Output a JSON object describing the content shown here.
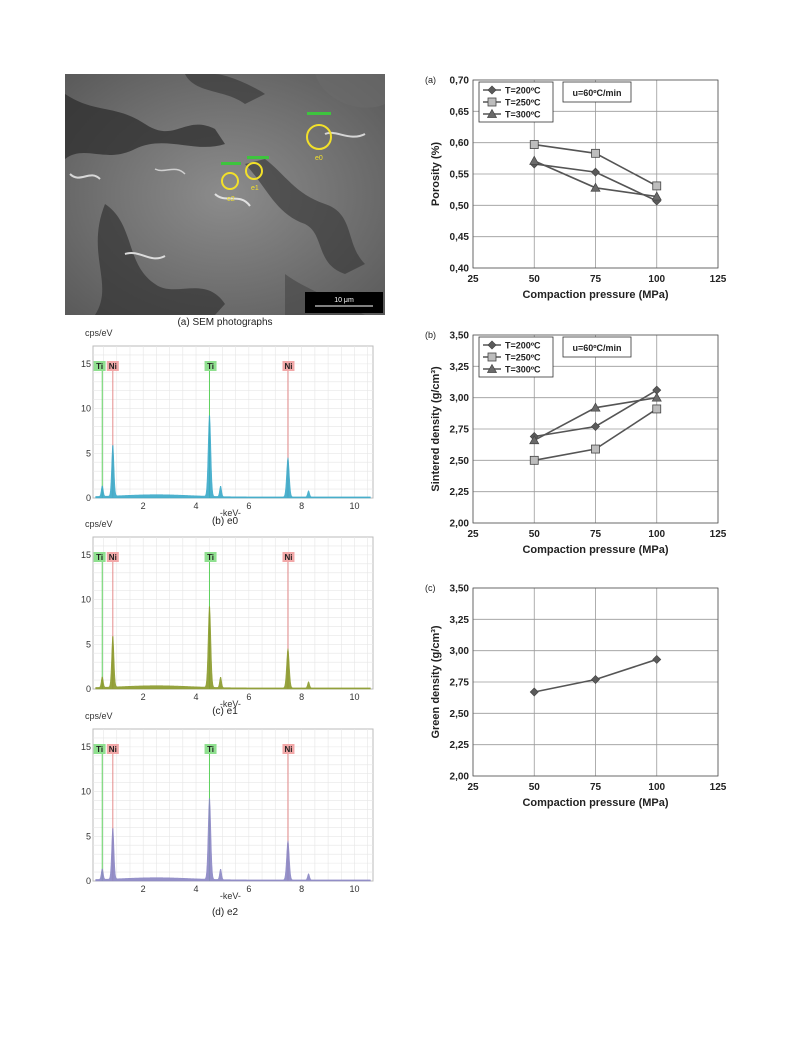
{
  "sem": {
    "caption": "(a) SEM photographs",
    "scale_label": "10 μm",
    "points": [
      "e0",
      "e1",
      "e2"
    ]
  },
  "eds": [
    {
      "caption": "(b) e0",
      "ylabel": "cps/eV",
      "xlabel": "-keV-",
      "fill": "#39a9c9",
      "peak_labels": [
        "Ti",
        "Ni",
        "Ti",
        "Ni"
      ]
    },
    {
      "caption": "(c) e1",
      "ylabel": "cps/eV",
      "xlabel": "-keV-",
      "fill": "#8a9a2a",
      "peak_labels": [
        "Ti",
        "Ni",
        "Ti",
        "Ni"
      ]
    },
    {
      "caption": "(d) e2",
      "ylabel": "cps/eV",
      "xlabel": "-keV-",
      "fill": "#8a86c4",
      "peak_labels": [
        "Ti",
        "Ni",
        "Ti",
        "Ni"
      ]
    }
  ],
  "eds_axis": {
    "y_ticks": [
      "0",
      "5",
      "10",
      "15"
    ],
    "x_ticks": [
      "2",
      "4",
      "6",
      "8",
      "10"
    ]
  },
  "chart_data": [
    {
      "type": "line",
      "panel_label": "(a)",
      "xlabel": "Compaction pressure (MPa)",
      "ylabel": "Porosity  (%)",
      "x_ticks": [
        "25",
        "50",
        "75",
        "100",
        "125"
      ],
      "y_ticks": [
        "0,40",
        "0,45",
        "0,50",
        "0,55",
        "0,60",
        "0,65",
        "0,70"
      ],
      "xlim": [
        25,
        125
      ],
      "ylim": [
        0.4,
        0.7
      ],
      "annotation": "u=60ºC/min",
      "legend_position": "top-left",
      "x": [
        50,
        75,
        100
      ],
      "series": [
        {
          "name": "T=200ºC",
          "marker": "diamond",
          "values": [
            0.566,
            0.553,
            0.507
          ]
        },
        {
          "name": "T=250ºC",
          "marker": "square",
          "values": [
            0.597,
            0.583,
            0.531
          ]
        },
        {
          "name": "T=300ºC",
          "marker": "triangle",
          "values": [
            0.571,
            0.528,
            0.514
          ]
        }
      ]
    },
    {
      "type": "line",
      "panel_label": "(b)",
      "xlabel": "Compaction pressure (MPa)",
      "ylabel": "Sintered density (g/cm³)",
      "x_ticks": [
        "25",
        "50",
        "75",
        "100",
        "125"
      ],
      "y_ticks": [
        "2,00",
        "2,25",
        "2,50",
        "2,75",
        "3,00",
        "3,25",
        "3,50"
      ],
      "xlim": [
        25,
        125
      ],
      "ylim": [
        2.0,
        3.5
      ],
      "annotation": "u=60ºC/min",
      "legend_position": "top-left",
      "x": [
        50,
        75,
        100
      ],
      "series": [
        {
          "name": "T=200ºC",
          "marker": "diamond",
          "values": [
            2.69,
            2.77,
            3.06
          ]
        },
        {
          "name": "T=250ºC",
          "marker": "square",
          "values": [
            2.5,
            2.59,
            2.91
          ]
        },
        {
          "name": "T=300ºC",
          "marker": "triangle",
          "values": [
            2.66,
            2.92,
            3.0
          ]
        }
      ]
    },
    {
      "type": "line",
      "panel_label": "(c)",
      "xlabel": "Compaction pressure (MPa)",
      "ylabel": "Green density (g/cm³)",
      "x_ticks": [
        "25",
        "50",
        "75",
        "100",
        "125"
      ],
      "y_ticks": [
        "2,00",
        "2,25",
        "2,50",
        "2,75",
        "3,00",
        "3,25",
        "3,50"
      ],
      "xlim": [
        25,
        125
      ],
      "ylim": [
        2.0,
        3.5
      ],
      "x": [
        50,
        75,
        100
      ],
      "series": [
        {
          "marker": "diamond",
          "values": [
            2.67,
            2.77,
            2.93
          ]
        }
      ]
    }
  ]
}
